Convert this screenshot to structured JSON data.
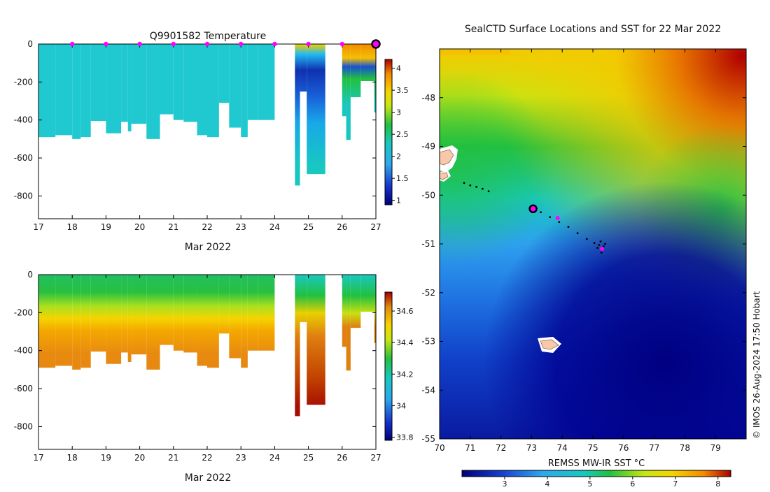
{
  "chart_data": [
    {
      "type": "heatmap",
      "panel": "temperature-section",
      "title": "Q9901582  Temperature",
      "xlabel": "Mar 2022",
      "ylabel": "",
      "x_ticks": [
        17,
        18,
        19,
        20,
        21,
        22,
        23,
        24,
        25,
        26,
        27
      ],
      "y_ticks": [
        0,
        -200,
        -400,
        -600,
        -800
      ],
      "ylim": [
        -920,
        0
      ],
      "xlim": [
        17,
        27
      ],
      "profile_markers_days": [
        18,
        19,
        20,
        21,
        22,
        23,
        24,
        25,
        26
      ],
      "latest_marker_day": 27,
      "colorbar": {
        "range": [
          0.9,
          4.2
        ],
        "ticks": [
          1,
          1.5,
          2,
          2.5,
          3,
          3.5,
          4
        ]
      },
      "profiles": [
        {
          "start": 17.0,
          "end": 17.5,
          "max_depth": 490
        },
        {
          "start": 17.5,
          "end": 18.0,
          "max_depth": 480
        },
        {
          "start": 18.0,
          "end": 18.25,
          "max_depth": 500
        },
        {
          "start": 18.25,
          "end": 18.55,
          "max_depth": 490
        },
        {
          "start": 18.55,
          "end": 19.0,
          "max_depth": 405
        },
        {
          "start": 19.0,
          "end": 19.45,
          "max_depth": 470
        },
        {
          "start": 19.45,
          "end": 19.65,
          "max_depth": 410
        },
        {
          "start": 19.65,
          "end": 19.75,
          "max_depth": 460
        },
        {
          "start": 19.75,
          "end": 20.2,
          "max_depth": 420
        },
        {
          "start": 20.2,
          "end": 20.6,
          "max_depth": 500
        },
        {
          "start": 20.6,
          "end": 21.0,
          "max_depth": 370
        },
        {
          "start": 21.0,
          "end": 21.3,
          "max_depth": 400
        },
        {
          "start": 21.3,
          "end": 21.7,
          "max_depth": 410
        },
        {
          "start": 21.7,
          "end": 22.0,
          "max_depth": 480
        },
        {
          "start": 22.0,
          "end": 22.35,
          "max_depth": 490
        },
        {
          "start": 22.35,
          "end": 22.65,
          "max_depth": 310
        },
        {
          "start": 22.65,
          "end": 23.0,
          "max_depth": 440
        },
        {
          "start": 23.0,
          "end": 23.2,
          "max_depth": 490
        },
        {
          "start": 23.2,
          "end": 23.5,
          "max_depth": 400
        },
        {
          "start": 23.5,
          "end": 24.0,
          "max_depth": 400
        },
        {
          "start": 24.6,
          "end": 24.75,
          "max_depth": 745
        },
        {
          "start": 24.75,
          "end": 24.95,
          "max_depth": 250
        },
        {
          "start": 24.95,
          "end": 25.5,
          "max_depth": 685
        },
        {
          "start": 26.0,
          "end": 26.12,
          "max_depth": 380
        },
        {
          "start": 26.12,
          "end": 26.25,
          "max_depth": 505
        },
        {
          "start": 26.25,
          "end": 26.55,
          "max_depth": 280
        },
        {
          "start": 26.55,
          "end": 26.95,
          "max_depth": 195
        },
        {
          "start": 26.95,
          "end": 27.0,
          "max_depth": 360
        }
      ]
    },
    {
      "type": "heatmap",
      "panel": "salinity-section",
      "title": "",
      "xlabel": "Mar 2022",
      "ylabel": "",
      "x_ticks": [
        17,
        18,
        19,
        20,
        21,
        22,
        23,
        24,
        25,
        26,
        27
      ],
      "y_ticks": [
        0,
        -200,
        -400,
        -600,
        -800
      ],
      "ylim": [
        -920,
        0
      ],
      "xlim": [
        17,
        27
      ],
      "colorbar": {
        "range": [
          33.78,
          34.72
        ],
        "ticks": [
          33.8,
          34,
          34.2,
          34.4,
          34.6
        ]
      }
    },
    {
      "type": "heatmap",
      "panel": "sst-map",
      "title": "SealCTD Surface Locations and SST for 22 Mar 2022",
      "xlabel": "",
      "ylabel": "",
      "x_ticks": [
        70,
        71,
        72,
        73,
        74,
        75,
        76,
        77,
        78,
        79
      ],
      "y_ticks": [
        -48,
        -49,
        -50,
        -51,
        -52,
        -53,
        -54,
        -55
      ],
      "xlim": [
        70,
        80
      ],
      "ylim": [
        -55,
        -47.0
      ],
      "colorbar": {
        "label": "REMSS MW-IR SST °C",
        "range": [
          2.0,
          8.3
        ],
        "ticks": [
          3,
          4,
          5,
          6,
          7,
          8
        ]
      },
      "track_points": [
        {
          "lon": 70.8,
          "lat": -49.75
        },
        {
          "lon": 71.0,
          "lat": -49.8
        },
        {
          "lon": 71.2,
          "lat": -49.83
        },
        {
          "lon": 71.4,
          "lat": -49.87
        },
        {
          "lon": 71.6,
          "lat": -49.92
        },
        {
          "lon": 73.05,
          "lat": -50.28
        },
        {
          "lon": 73.3,
          "lat": -50.35
        },
        {
          "lon": 73.6,
          "lat": -50.45
        },
        {
          "lon": 73.9,
          "lat": -50.55
        },
        {
          "lon": 74.2,
          "lat": -50.65
        },
        {
          "lon": 74.5,
          "lat": -50.78
        },
        {
          "lon": 74.8,
          "lat": -50.9
        },
        {
          "lon": 75.05,
          "lat": -50.98
        },
        {
          "lon": 75.2,
          "lat": -51.02
        },
        {
          "lon": 75.25,
          "lat": -50.95
        },
        {
          "lon": 75.35,
          "lat": -51.05
        },
        {
          "lon": 75.15,
          "lat": -51.08
        },
        {
          "lon": 75.3,
          "lat": -51.12
        },
        {
          "lon": 75.4,
          "lat": -51.0
        },
        {
          "lon": 75.28,
          "lat": -51.18
        }
      ],
      "highlight_point": {
        "lon": 73.05,
        "lat": -50.28
      },
      "magenta_points": [
        {
          "lon": 73.85,
          "lat": -50.47
        },
        {
          "lon": 75.3,
          "lat": -51.1
        }
      ]
    }
  ],
  "credit": "© IMOS 26-Aug-2024 17:50 Hobart"
}
